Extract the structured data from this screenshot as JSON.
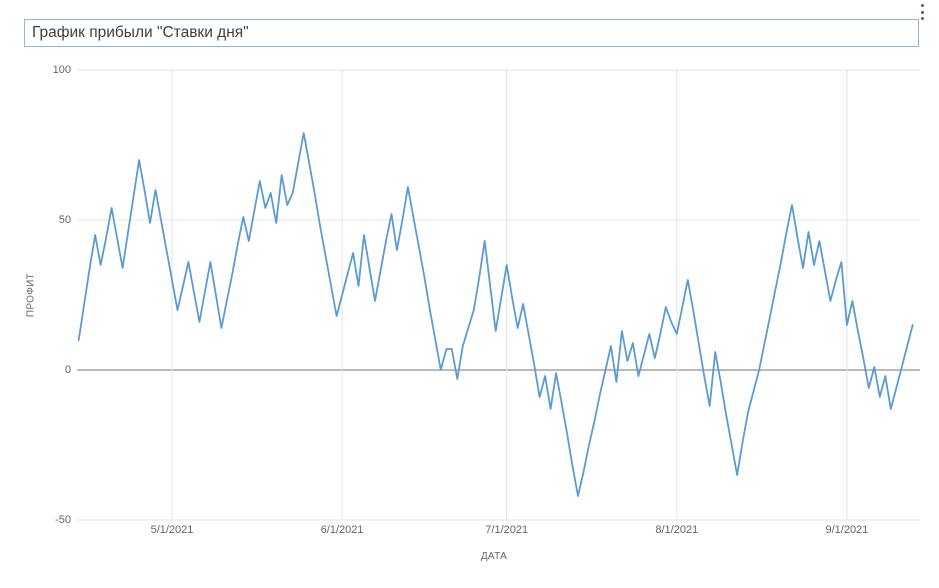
{
  "title": {
    "text": "График прибыли \"Ставки дня\""
  },
  "menu": {
    "icon": "kebab-menu-icon"
  },
  "colors": {
    "line": "#5b9bd5",
    "grid": "#e4e4e4",
    "zero_line": "#767676",
    "label": "#666666",
    "title_text": "#3f3f3f",
    "title_border": "#8fb6e4",
    "background": "#ffffff"
  },
  "chart_data": {
    "type": "line",
    "title": "График прибыли \"Ставки дня\"",
    "xlabel": "ДАТА",
    "ylabel": "ПРОФИТ",
    "ylim": [
      -50,
      100
    ],
    "yticks": [
      100,
      50,
      0,
      -50
    ],
    "xticks": [
      "5/1/2021",
      "6/1/2021",
      "7/1/2021",
      "8/1/2021",
      "9/1/2021"
    ],
    "grid": true,
    "legend": false,
    "line_color": "#5b9bd5",
    "series": [
      {
        "name": "ПРОФИТ",
        "start_date": "4/14/2021",
        "frequency": "daily",
        "values": [
          10,
          22,
          34,
          45,
          35,
          44,
          54,
          44,
          34,
          46,
          58,
          70,
          60,
          49,
          60,
          50,
          40,
          30,
          20,
          28,
          36,
          26,
          16,
          26,
          36,
          25,
          14,
          23,
          32,
          42,
          51,
          43,
          53,
          63,
          54,
          59,
          49,
          65,
          55,
          59,
          69,
          79,
          69,
          59,
          48,
          38,
          28,
          18,
          25,
          32,
          39,
          28,
          45,
          34,
          23,
          33,
          43,
          52,
          40,
          50,
          61,
          51,
          41,
          31,
          20,
          10,
          0,
          7,
          7,
          -3,
          8,
          14,
          20,
          31,
          43,
          28,
          13,
          24,
          35,
          24,
          14,
          22,
          12,
          2,
          -9,
          -2,
          -13,
          -1,
          -11,
          -21,
          -32,
          -42,
          -34,
          -25,
          -17,
          -8,
          0,
          8,
          -4,
          13,
          3,
          9,
          -2,
          5,
          12,
          4,
          12,
          21,
          16,
          12,
          21,
          30,
          20,
          9,
          -2,
          -12,
          6,
          -4,
          -15,
          -25,
          -35,
          -24,
          -14,
          -7,
          0,
          9,
          18,
          27,
          36,
          46,
          55,
          44,
          34,
          46,
          35,
          43,
          33,
          23,
          30,
          36,
          15,
          23,
          13,
          4,
          -6,
          1,
          -9,
          -2,
          -13,
          -6,
          1,
          8,
          15
        ]
      }
    ]
  }
}
